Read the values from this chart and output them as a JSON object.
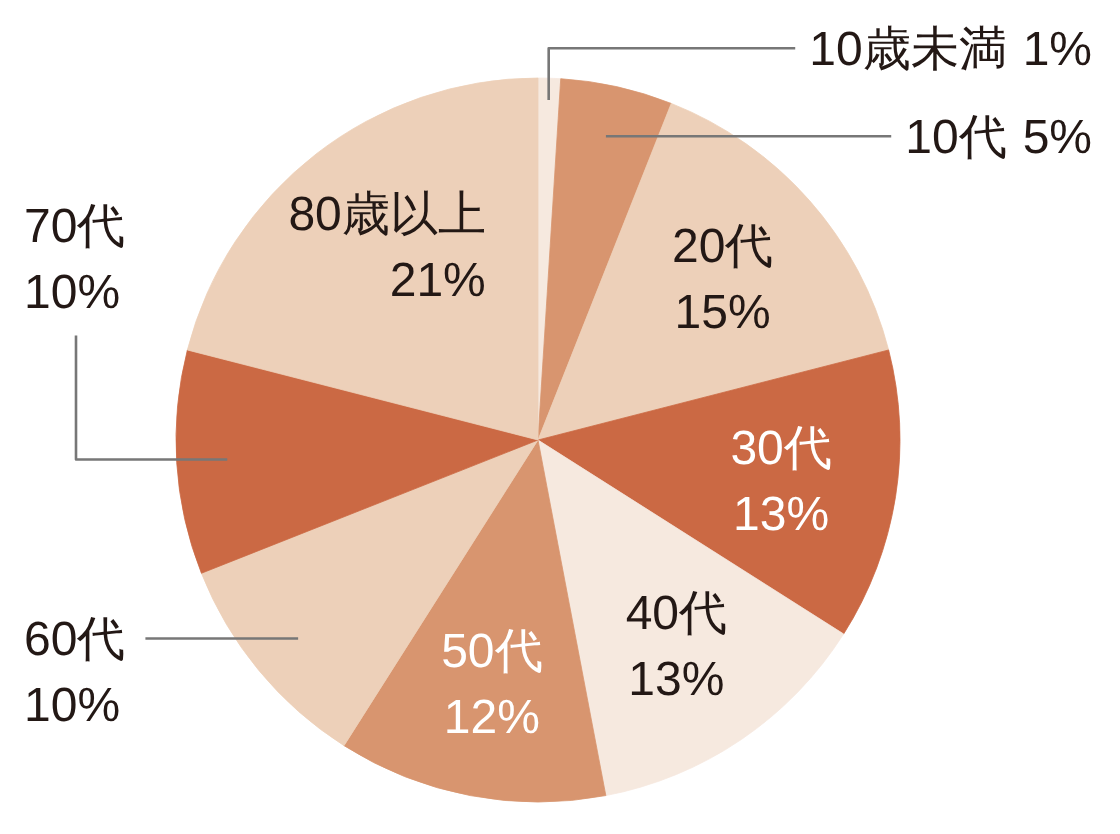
{
  "chart_data": {
    "type": "pie",
    "categories": [
      "10歳未満",
      "10代",
      "20代",
      "30代",
      "40代",
      "50代",
      "60代",
      "70代",
      "80歳以上"
    ],
    "values": [
      1,
      5,
      15,
      13,
      13,
      12,
      10,
      10,
      21
    ],
    "value_labels": [
      "1%",
      "5%",
      "15%",
      "13%",
      "13%",
      "12%",
      "10%",
      "10%",
      "21%"
    ],
    "colors": [
      "#f6e9df",
      "#d8956f",
      "#edd0b9",
      "#cb6944",
      "#f6e9df",
      "#d8956f",
      "#edd0b9",
      "#cb6944",
      "#edd0b9"
    ]
  }
}
